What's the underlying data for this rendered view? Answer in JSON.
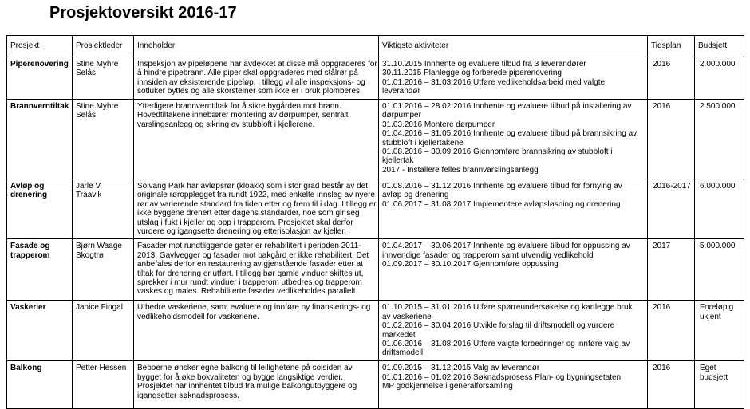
{
  "header": {
    "title": "Prosjektoversikt 2016-17"
  },
  "table": {
    "headers": [
      "Prosjekt",
      "Prosjektleder",
      "Inneholder",
      "Viktigste aktiviteter",
      "Tidsplan",
      "Budsjett"
    ],
    "rows": [
      [
        [
          "Piperenovering"
        ],
        [
          "Stine Myhre",
          "Selås"
        ],
        [
          "Inspeksjon av pipeløpene har avdekket at disse må oppgraderes for",
          "å hindre pipebrann. Alle piper skal oppgraderes med stålrør på",
          "innsiden av eksisterende pipeløp.  I tillegg vil alle inspeksjons- og",
          "sotluker byttes og alle skorsteiner som ikke er i bruk plomberes."
        ],
        [
          "31.10.2015 Innhente og evaluere tilbud fra 3 leverandører",
          "30.11.2015 Planlegge og forberede piperenovering",
          "01.01.2016 – 31.03.2016 Utføre vedlikeholdsarbeid med valgte",
          "leverandør"
        ],
        [
          "2016"
        ],
        [
          "2.000.000"
        ]
      ],
      [
        [
          "Brannverntiltak"
        ],
        [
          "Stine Myhre",
          "Selås"
        ],
        [
          "Ytterligere brannverntiltak for å sikre bygården mot brann.",
          "Hovedtiltakene innebærer montering av dørpumper, sentralt",
          "varslingsanlegg og sikring av stubbloft i kjellerene."
        ],
        [
          "01.01.2016 – 28.02.2016 Innhente og evaluere tilbud på installering av",
          "dørpumper",
          "31.03.2016 Montere dørpumper",
          "01.04.2016 – 31.05.2016 Innhente og evaluere tilbud på brannsikring av",
          "stubbloft i kjellertakene",
          "01.08.2016 – 30.09.2016 Gjennomføre brannsikring av stubbloft i",
          "kjellertak",
          "2017 - Installere felles brannvarslingsanlegg"
        ],
        [
          "2016"
        ],
        [
          "2.500.000"
        ]
      ],
      [
        [
          "Avløp og",
          "drenering"
        ],
        [
          "Jarle V.",
          "Traavik"
        ],
        [
          "Solvang Park har avløpsrør (kloakk) som i stor grad består av det",
          "originale røropplegget fra rundt 1922, med enkelte innslag av nyere",
          "rør av varierende standard fra tiden etter og frem til i dag. I tillegg er",
          "ikke byggene drenert etter dagens standarder, noe som gir seg",
          "utslag i fukt i kjeller og opp i trapperom. Prosjektet skal derfor",
          "vurdere og igangsette drenering og etterisolasjon av kjeller."
        ],
        [
          "01.08.2016 – 31.12.2016 Innhente og evaluere tilbud for fornying av",
          "avløp og drenering",
          "01.06.2017 – 31.08.2017 Implementere avløpsløsning og drenering"
        ],
        [
          "2016-2017"
        ],
        [
          "6.000.000"
        ]
      ],
      [
        [
          "Fasade og",
          "trapperom"
        ],
        [
          "Bjørn Waage",
          "Skogtrø"
        ],
        [
          "Fasader mot rundtliggende gater er rehabilitert i perioden 2011-",
          "2013. Gavlvegger og fasader mot bakgård er ikke rehabilitert. Det",
          "anbefales derfor en restaurering av gjenstående fasader etter at",
          "tiltak for drenering er utført. I tillegg bør gamle vinduer skiftes ut,",
          "sprekker i mur rundt vinduer i trapperom utbedres og trapperom",
          "vaskes og males. Rehabiliterte fasader vedlikeholdes parallelt."
        ],
        [
          "01.04.2017 – 30.06.2017 Innhente og evaluere tilbud for oppussing av",
          "innvendige fasader og trapperom samt utvendig vedlikehold",
          "01.09.2017 – 30.10.2017 Gjennomføre oppussing"
        ],
        [
          "2017"
        ],
        [
          "5.000.000"
        ]
      ],
      [
        [
          "Vaskerier"
        ],
        [
          "Janice Fingal"
        ],
        [
          "Utbedre vaskeriene, samt evaluere og innføre ny finansierings- og",
          "vedlikeholdsmodell for vaskeriene."
        ],
        [
          "01.10.2015 – 31.01.2016 Utføre spørreundersøkelse og kartlegge bruk",
          "av vaskeriene",
          "01.02.2016 – 30.04.2016 Utvikle forslag til driftsmodell og vurdere",
          "markedet",
          "01.06.2016 – 31.08.2016 Utføre valgte forbedringer og innføre valg av",
          "driftsmodell"
        ],
        [
          "2016"
        ],
        [
          "Foreløpig",
          "ukjent"
        ]
      ],
      [
        [
          "Balkong"
        ],
        [
          "Petter Hessen"
        ],
        [
          "Beboerne ønsker egne balkong til leilighetene på solsiden av",
          "bygget for å øke bokvaliteten og bygge langsiktige verdier.",
          "Prosjektet har innhentet tilbud fra mulige balkongutbyggere og",
          "igangsetter søknadsprosess."
        ],
        [
          "01.09.2015 – 31.12.2015 Valg av leverandør",
          "01.01.2016 – 01.02.2016 Søknadsprosess Plan- og bygningsetaten",
          "MP godkjennelse i generalforsamling"
        ],
        [
          "2016"
        ],
        [
          "Eget",
          "budsjett"
        ]
      ]
    ]
  }
}
